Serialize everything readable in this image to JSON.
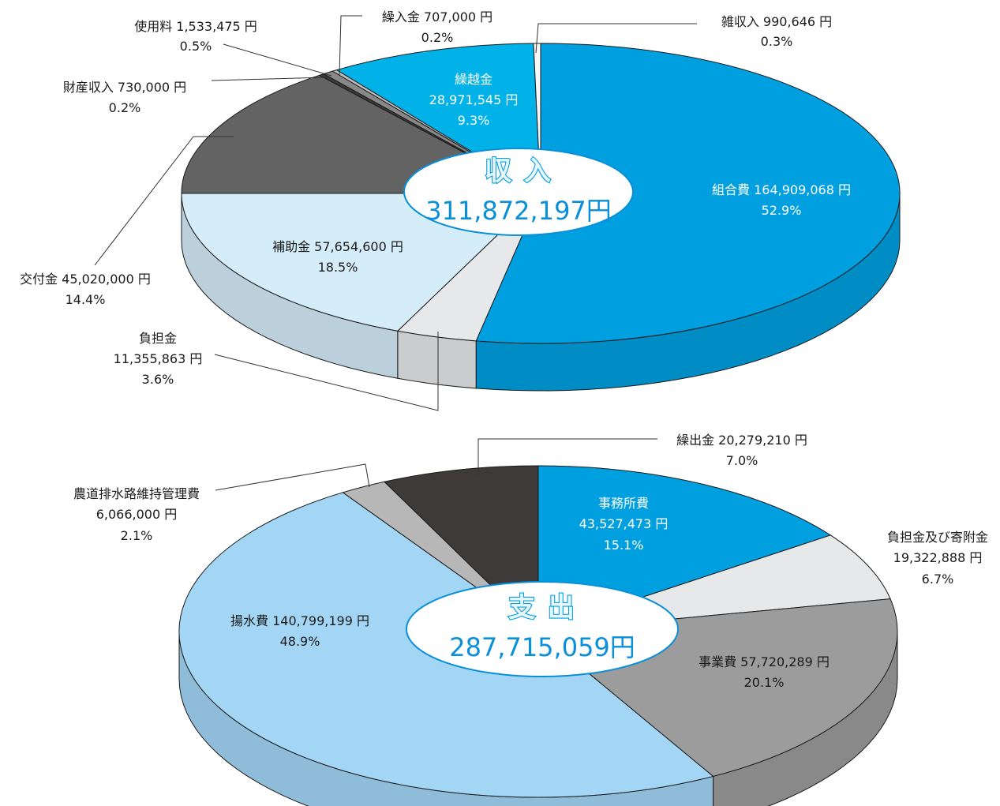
{
  "chart_data": [
    {
      "type": "pie",
      "title": "収 入",
      "total_label": "311,872,197円",
      "categories": [
        "組合費",
        "負担金",
        "補助金",
        "交付金",
        "財産収入",
        "使用料",
        "繰入金",
        "繰越金",
        "雑収入"
      ],
      "values": [
        164909068,
        11355863,
        57654600,
        45020000,
        730000,
        1533475,
        707000,
        28971545,
        990646
      ],
      "slices": [
        {
          "name": "組合費",
          "value": 164909068,
          "value_text": "164,909,068 円",
          "percent": "52.9%",
          "color": "#009fe0"
        },
        {
          "name": "負担金",
          "value": 11355863,
          "value_text": "11,355,863 円",
          "percent": "3.6%",
          "color": "#e6e8e9"
        },
        {
          "name": "補助金",
          "value": 57654600,
          "value_text": "57,654,600 円",
          "percent": "18.5%",
          "color": "#d5ecf9"
        },
        {
          "name": "交付金",
          "value": 45020000,
          "value_text": "45,020,000 円",
          "percent": "14.4%",
          "color": "#636363"
        },
        {
          "name": "財産収入",
          "value": 730000,
          "value_text": "730,000 円",
          "percent": "0.2%",
          "color": "#3e3a39"
        },
        {
          "name": "使用料",
          "value": 1533475,
          "value_text": "1,533,475 円",
          "percent": "0.5%",
          "color": "#888888"
        },
        {
          "name": "繰入金",
          "value": 707000,
          "value_text": "707,000 円",
          "percent": "0.2%",
          "color": "#bfbfbf"
        },
        {
          "name": "繰越金",
          "value": 28971545,
          "value_text": "28,971,545 円",
          "percent": "9.3%",
          "color": "#00b2e7"
        },
        {
          "name": "雑収入",
          "value": 990646,
          "value_text": "990,646 円",
          "percent": "0.3%",
          "color": "#f7f7f7"
        }
      ]
    },
    {
      "type": "pie",
      "title": "支 出",
      "total_label": "287,715,059円",
      "categories": [
        "事務所費",
        "負担金及び寄附金",
        "事業費",
        "揚水費",
        "農道排水路維持管理費",
        "繰出金"
      ],
      "values": [
        43527473,
        19322888,
        57720289,
        140799199,
        6066000,
        20279210
      ],
      "slices": [
        {
          "name": "事務所費",
          "value": 43527473,
          "value_text": "43,527,473 円",
          "percent": "15.1%",
          "color": "#009fe0"
        },
        {
          "name": "負担金及び寄附金",
          "value": 19322888,
          "value_text": "19,322,888 円",
          "percent": "6.7%",
          "color": "#e6e8e9"
        },
        {
          "name": "事業費",
          "value": 57720289,
          "value_text": "57,720,289 円",
          "percent": "20.1%",
          "color": "#9c9c9c"
        },
        {
          "name": "揚水費",
          "value": 140799199,
          "value_text": "140,799,199 円",
          "percent": "48.9%",
          "color": "#a3d6f5"
        },
        {
          "name": "農道排水路維持管理費",
          "value": 6066000,
          "value_text": "6,066,000 円",
          "percent": "2.1%",
          "color": "#b7b7b7"
        },
        {
          "name": "繰出金",
          "value": 20279210,
          "value_text": "20,279,210 円",
          "percent": "7.0%",
          "color": "#3e3a39"
        }
      ]
    }
  ]
}
